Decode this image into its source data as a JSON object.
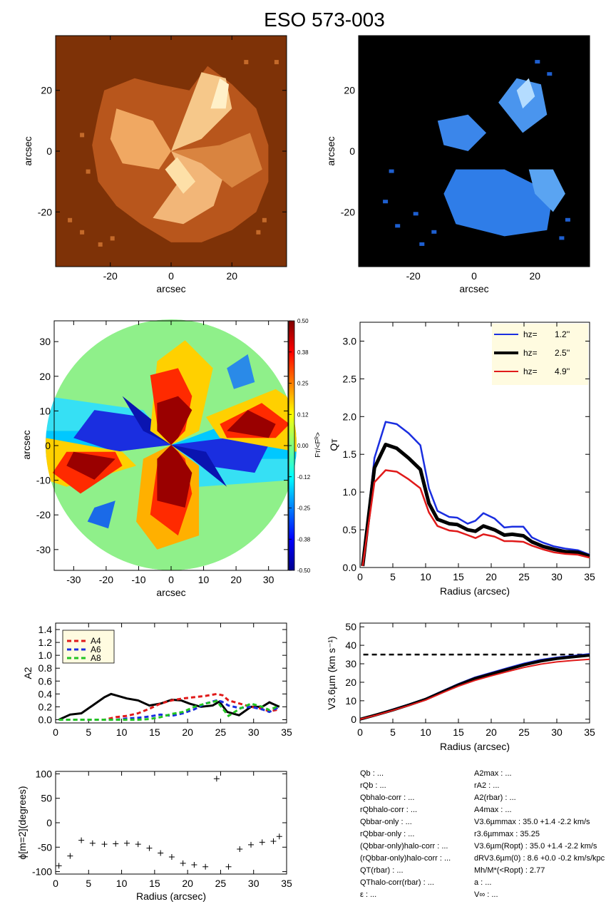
{
  "figure": {
    "title": "ESO 573-003",
    "colors": {
      "orange_dark": "#7a2e05",
      "orange_light": "#fff0c8",
      "blue_light": "#a8d8ff",
      "blue_mid": "#1e6fe0",
      "series_blue": "#1a2ee0",
      "series_black": "#000000",
      "series_red": "#e01a1a",
      "series_green": "#22c422",
      "legend_bg": "#fffbe0"
    }
  },
  "panels": {
    "img1": {
      "ylabel": "arcsec",
      "xlabel": "arcsec",
      "xticks": [
        "-20",
        "0",
        "20"
      ],
      "yticks": [
        "20",
        "0",
        "-20"
      ]
    },
    "img2": {
      "ylabel": "arcsec",
      "xlabel": "arcsec",
      "xticks": [
        "-20",
        "0",
        "20"
      ],
      "yticks": [
        "20",
        "0",
        "-20"
      ]
    },
    "map": {
      "ylabel": "arcsec",
      "xlabel": "arcsec",
      "xticks": [
        "-30",
        "-20",
        "-10",
        "0",
        "10",
        "20",
        "30"
      ],
      "yticks": [
        "30",
        "20",
        "10",
        "0",
        "-10",
        "-20",
        "-30"
      ],
      "colorbar_label": "Fт/<Fᴿ>",
      "colorbar_ticks": [
        "0.50",
        "0.38",
        "0.25",
        "0.12",
        "0.00",
        "-0.12",
        "-0.25",
        "-0.38",
        "-0.50"
      ]
    },
    "qt": {
      "ylabel": "Qт",
      "xlabel": "Radius (arcsec)",
      "legend": [
        {
          "label": "hz=",
          "value": "1.2''",
          "color": "#1a2ee0"
        },
        {
          "label": "hz=",
          "value": "2.5''",
          "color": "#000000"
        },
        {
          "label": "hz=",
          "value": "4.9''",
          "color": "#e01a1a"
        }
      ]
    },
    "a2": {
      "ylabel": "A2",
      "legend": [
        {
          "label": "A4",
          "color": "#e01a1a"
        },
        {
          "label": "A6",
          "color": "#1a2ee0"
        },
        {
          "label": "A8",
          "color": "#22c422"
        }
      ]
    },
    "v": {
      "ylabel": "V3.6µm (km s⁻¹)",
      "xlabel": "Radius (arcsec)"
    },
    "phi": {
      "ylabel": "ϕ[m=2](degrees)",
      "xlabel": "Radius (arcsec)"
    }
  },
  "info": {
    "left": [
      "Qb : ...",
      "rQb : ...",
      "Qbhalo-corr : ...",
      "rQbhalo-corr : ...",
      "Qbbar-only : ...",
      "rQbbar-only : ...",
      "(Qbbar-only)halo-corr : ...",
      "(rQbbar-only)halo-corr : ...",
      "QT(rbar) : ...",
      "QThalo-corr(rbar) : ...",
      "ε : ..."
    ],
    "right": [
      "A2max : ...",
      "rA2 : ...",
      "A2(rbar) : ...",
      "A4max : ...",
      "V3.6µmmax : 35.0 +1.4 -2.2 km/s",
      "r3.6µmmax : 35.25",
      "V3.6µm(Ropt) : 35.0 +1.4 -2.2 km/s",
      "dRV3.6µm(0) : 8.6 +0.0 -0.2 km/s/kpc",
      "Mh/M*(<Ropt) : 2.77",
      "a : ...",
      "V∞ : ..."
    ]
  },
  "chart_data": [
    {
      "type": "heatmap",
      "panel": "stellar image (orange)",
      "xlabel": "arcsec",
      "ylabel": "arcsec",
      "xlim": [
        -38,
        38
      ],
      "ylim": [
        -38,
        38
      ],
      "x_ticks": [
        -20,
        0,
        20
      ],
      "y_ticks": [
        -20,
        0,
        20
      ]
    },
    {
      "type": "heatmap",
      "panel": "residual image (blue)",
      "xlabel": "arcsec",
      "ylabel": "arcsec",
      "xlim": [
        -38,
        38
      ],
      "ylim": [
        -38,
        38
      ],
      "x_ticks": [
        -20,
        0,
        20
      ],
      "y_ticks": [
        -20,
        0,
        20
      ]
    },
    {
      "type": "heatmap",
      "panel": "tangential force ratio map",
      "xlabel": "arcsec",
      "ylabel": "arcsec",
      "xlim": [
        -36,
        36
      ],
      "ylim": [
        -36,
        36
      ],
      "colorbar_range": [
        -0.5,
        0.5
      ],
      "colormap": "jet"
    },
    {
      "type": "line",
      "panel": "Q_T profile",
      "xlabel": "Radius (arcsec)",
      "ylabel": "Qт",
      "xlim": [
        0,
        35
      ],
      "ylim": [
        0,
        3.25
      ],
      "x": [
        0.4,
        2.2,
        3.9,
        5.6,
        7.4,
        9.2,
        10.5,
        11.8,
        13.6,
        14.8,
        16.4,
        17.6,
        18.8,
        20.5,
        22.0,
        23.2,
        24.9,
        26.2,
        27.9,
        29.6,
        31.3,
        33.2,
        35.0
      ],
      "series": [
        {
          "name": "hz=   1.2''",
          "values": [
            0.02,
            1.45,
            1.93,
            1.9,
            1.78,
            1.62,
            1.05,
            0.75,
            0.67,
            0.66,
            0.58,
            0.62,
            0.72,
            0.65,
            0.53,
            0.54,
            0.54,
            0.4,
            0.33,
            0.28,
            0.25,
            0.23,
            0.17
          ]
        },
        {
          "name": "hz=   2.5''",
          "values": [
            0.02,
            1.32,
            1.63,
            1.58,
            1.45,
            1.3,
            0.85,
            0.64,
            0.58,
            0.57,
            0.5,
            0.48,
            0.55,
            0.5,
            0.43,
            0.44,
            0.42,
            0.34,
            0.28,
            0.24,
            0.21,
            0.2,
            0.15
          ]
        },
        {
          "name": "hz=   4.9''",
          "values": [
            0.02,
            1.13,
            1.29,
            1.27,
            1.17,
            1.05,
            0.73,
            0.55,
            0.49,
            0.48,
            0.43,
            0.39,
            0.44,
            0.41,
            0.35,
            0.35,
            0.34,
            0.29,
            0.24,
            0.2,
            0.18,
            0.17,
            0.13
          ]
        }
      ]
    },
    {
      "type": "line",
      "panel": "Fourier amplitudes",
      "xlabel": "",
      "ylabel": "A2",
      "xlim": [
        0,
        35
      ],
      "ylim": [
        -0.05,
        1.5
      ],
      "series": [
        {
          "name": "A2",
          "x": [
            0.5,
            2.2,
            3.9,
            5.6,
            7.4,
            8.4,
            9.1,
            10.8,
            12.5,
            14.2,
            15.9,
            17.6,
            19.0,
            20.3,
            22.0,
            23.8,
            24.8,
            26.0,
            27.8,
            29.6,
            31.3,
            32.4,
            33.9
          ],
          "values": [
            0.0,
            0.08,
            0.1,
            0.22,
            0.35,
            0.4,
            0.38,
            0.33,
            0.3,
            0.22,
            0.25,
            0.31,
            0.3,
            0.25,
            0.2,
            0.22,
            0.28,
            0.12,
            0.07,
            0.2,
            0.2,
            0.27,
            0.2
          ]
        },
        {
          "name": "A4",
          "x": [
            0.5,
            2.2,
            3.9,
            5.6,
            7.4,
            9.1,
            10.8,
            12.5,
            14.2,
            15.9,
            17.6,
            19.3,
            21.0,
            22.7,
            24.4,
            25.3,
            26.2,
            27.9,
            29.6,
            31.3,
            32.4,
            33.9
          ],
          "values": [
            0.0,
            0.0,
            0.0,
            0.0,
            0.0,
            0.04,
            0.06,
            0.1,
            0.17,
            0.25,
            0.3,
            0.33,
            0.35,
            0.37,
            0.4,
            0.38,
            0.3,
            0.25,
            0.2,
            0.17,
            0.13,
            0.16
          ]
        },
        {
          "name": "A6",
          "x": [
            0.5,
            2.2,
            3.9,
            5.6,
            7.4,
            9.1,
            10.8,
            12.5,
            14.2,
            15.9,
            17.6,
            19.3,
            21.0,
            22.7,
            24.4,
            25.2,
            26.2,
            27.9,
            29.6,
            31.3,
            32.4,
            33.9
          ],
          "values": [
            0.0,
            0.0,
            0.0,
            0.0,
            0.0,
            0.0,
            0.02,
            0.03,
            0.05,
            0.08,
            0.06,
            0.1,
            0.16,
            0.25,
            0.3,
            0.28,
            0.22,
            0.18,
            0.2,
            0.16,
            0.12,
            0.2
          ]
        },
        {
          "name": "A8",
          "x": [
            0.5,
            2.2,
            3.9,
            5.6,
            7.4,
            9.1,
            10.8,
            12.5,
            14.2,
            15.9,
            17.6,
            19.3,
            21.0,
            22.7,
            24.4,
            26.2,
            27.9,
            29.6,
            31.3,
            32.4,
            33.9
          ],
          "values": [
            0.0,
            0.0,
            0.0,
            0.0,
            0.0,
            0.0,
            0.0,
            0.0,
            0.01,
            0.04,
            0.09,
            0.12,
            0.2,
            0.25,
            0.29,
            0.06,
            0.17,
            0.25,
            0.2,
            0.15,
            0.22
          ]
        }
      ]
    },
    {
      "type": "line",
      "panel": "rotation curve",
      "xlabel": "Radius (arcsec)",
      "ylabel": "V3.6µm (km s⁻¹)",
      "xlim": [
        0,
        35
      ],
      "ylim": [
        -2,
        52
      ],
      "hline": 35.0,
      "x": [
        0,
        2.5,
        5,
        7.5,
        10,
        12.5,
        15,
        17.5,
        20,
        22.5,
        25,
        27.5,
        30,
        32.5,
        35
      ],
      "series": [
        {
          "name": "hz=   1.2''",
          "values": [
            0,
            2.5,
            5.2,
            8.0,
            11.0,
            15.0,
            19.0,
            22.5,
            25.0,
            27.6,
            30.0,
            32.0,
            33.3,
            34.2,
            35.2
          ]
        },
        {
          "name": "hz=   2.5''",
          "values": [
            0,
            2.4,
            5.0,
            7.8,
            10.8,
            14.7,
            18.6,
            22.0,
            24.5,
            27.0,
            29.4,
            31.4,
            32.8,
            33.7,
            34.6
          ]
        },
        {
          "name": "hz=   4.9''",
          "values": [
            0,
            2.2,
            4.8,
            7.5,
            10.4,
            14.2,
            17.9,
            21.0,
            23.5,
            25.8,
            28.0,
            29.8,
            31.0,
            31.8,
            32.4
          ]
        }
      ]
    },
    {
      "type": "scatter",
      "panel": "bar phase",
      "xlabel": "Radius (arcsec)",
      "ylabel": "ϕ[m=2](degrees)",
      "xlim": [
        0,
        35
      ],
      "ylim": [
        -105,
        105
      ],
      "x": [
        0.5,
        2.2,
        3.9,
        5.6,
        7.4,
        9.1,
        10.8,
        12.5,
        14.2,
        15.9,
        17.6,
        19.3,
        21.0,
        22.7,
        24.4,
        26.2,
        27.9,
        29.6,
        31.3,
        33.0,
        33.9
      ],
      "values": [
        -88,
        -68,
        -36,
        -42,
        -44,
        -43,
        -42,
        -44,
        -52,
        -62,
        -70,
        -83,
        -86,
        -90,
        90,
        -90,
        -54,
        -45,
        -40,
        -38,
        -28
      ]
    }
  ]
}
